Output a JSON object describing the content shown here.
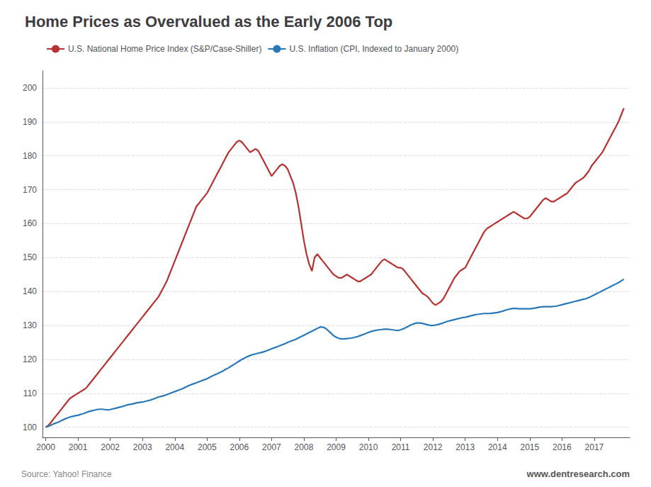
{
  "chart_data": {
    "type": "line",
    "title": "Home Prices as Overvalued as the Early 2006 Top",
    "annotations": [
      "Source: Yahoo! Finance",
      "www.dentresearch.com"
    ],
    "x": [
      2000.0,
      2000.083,
      2000.167,
      2000.25,
      2000.333,
      2000.417,
      2000.5,
      2000.583,
      2000.667,
      2000.75,
      2000.833,
      2000.917,
      2001.0,
      2001.083,
      2001.167,
      2001.25,
      2001.333,
      2001.417,
      2001.5,
      2001.583,
      2001.667,
      2001.75,
      2001.833,
      2001.917,
      2002.0,
      2002.083,
      2002.167,
      2002.25,
      2002.333,
      2002.417,
      2002.5,
      2002.583,
      2002.667,
      2002.75,
      2002.833,
      2002.917,
      2003.0,
      2003.083,
      2003.167,
      2003.25,
      2003.333,
      2003.417,
      2003.5,
      2003.583,
      2003.667,
      2003.75,
      2003.833,
      2003.917,
      2004.0,
      2004.083,
      2004.167,
      2004.25,
      2004.333,
      2004.417,
      2004.5,
      2004.583,
      2004.667,
      2004.75,
      2004.833,
      2004.917,
      2005.0,
      2005.083,
      2005.167,
      2005.25,
      2005.333,
      2005.417,
      2005.5,
      2005.583,
      2005.667,
      2005.75,
      2005.833,
      2005.917,
      2006.0,
      2006.083,
      2006.167,
      2006.25,
      2006.333,
      2006.417,
      2006.5,
      2006.583,
      2006.667,
      2006.75,
      2006.833,
      2006.917,
      2007.0,
      2007.083,
      2007.167,
      2007.25,
      2007.333,
      2007.417,
      2007.5,
      2007.583,
      2007.667,
      2007.75,
      2007.833,
      2007.917,
      2008.0,
      2008.083,
      2008.167,
      2008.25,
      2008.333,
      2008.417,
      2008.5,
      2008.583,
      2008.667,
      2008.75,
      2008.833,
      2008.917,
      2009.0,
      2009.083,
      2009.167,
      2009.25,
      2009.333,
      2009.417,
      2009.5,
      2009.583,
      2009.667,
      2009.75,
      2009.833,
      2009.917,
      2010.0,
      2010.083,
      2010.167,
      2010.25,
      2010.333,
      2010.417,
      2010.5,
      2010.583,
      2010.667,
      2010.75,
      2010.833,
      2010.917,
      2011.0,
      2011.083,
      2011.167,
      2011.25,
      2011.333,
      2011.417,
      2011.5,
      2011.583,
      2011.667,
      2011.75,
      2011.833,
      2011.917,
      2012.0,
      2012.083,
      2012.167,
      2012.25,
      2012.333,
      2012.417,
      2012.5,
      2012.583,
      2012.667,
      2012.75,
      2012.833,
      2012.917,
      2013.0,
      2013.083,
      2013.167,
      2013.25,
      2013.333,
      2013.417,
      2013.5,
      2013.583,
      2013.667,
      2013.75,
      2013.833,
      2013.917,
      2014.0,
      2014.083,
      2014.167,
      2014.25,
      2014.333,
      2014.417,
      2014.5,
      2014.583,
      2014.667,
      2014.75,
      2014.833,
      2014.917,
      2015.0,
      2015.083,
      2015.167,
      2015.25,
      2015.333,
      2015.417,
      2015.5,
      2015.583,
      2015.667,
      2015.75,
      2015.833,
      2015.917,
      2016.0,
      2016.083,
      2016.167,
      2016.25,
      2016.333,
      2016.417,
      2016.5,
      2016.583,
      2016.667,
      2016.75,
      2016.833,
      2016.917,
      2017.0,
      2017.083,
      2017.167,
      2017.25,
      2017.333,
      2017.417,
      2017.5,
      2017.583,
      2017.667,
      2017.75,
      2017.833,
      2017.917
    ],
    "series": [
      {
        "name": "U.S. National Home Price Index (S&P/Case-Shiller)",
        "color": "#b83030",
        "values": [
          100,
          100.5,
          101.5,
          102.5,
          103.5,
          104.5,
          105.5,
          106.5,
          107.5,
          108.5,
          109,
          109.5,
          110,
          110.5,
          111,
          111.5,
          112.5,
          113.5,
          114.5,
          115.5,
          116.5,
          117.5,
          118.5,
          119.5,
          120.5,
          121.5,
          122.5,
          123.5,
          124.5,
          125.5,
          126.5,
          127.5,
          128.5,
          129.5,
          130.5,
          131.5,
          132.5,
          133.5,
          134.5,
          135.5,
          136.5,
          137.5,
          138.5,
          140,
          141.5,
          143,
          145,
          147,
          149,
          151,
          153,
          155,
          157,
          159,
          161,
          163,
          165,
          166,
          167,
          168,
          169,
          170.5,
          172,
          173.5,
          175,
          176.5,
          178,
          179.5,
          181,
          182,
          183,
          184,
          184.5,
          184,
          183,
          182,
          181,
          181.5,
          182,
          181.5,
          180,
          178.5,
          177,
          175.5,
          174,
          175,
          176,
          177,
          177.5,
          177,
          176,
          174,
          172,
          169,
          165,
          160,
          155,
          151,
          148,
          146,
          150,
          151,
          150,
          149,
          148,
          147,
          146,
          145,
          144.5,
          144,
          144,
          144.5,
          145,
          144.5,
          144,
          143.5,
          143,
          143,
          143.5,
          144,
          144.5,
          145,
          146,
          147,
          148,
          149,
          149.5,
          149,
          148.5,
          148,
          147.5,
          147,
          147,
          146.5,
          145.5,
          144.5,
          143.5,
          142.5,
          141.5,
          140.5,
          139.5,
          139,
          138.5,
          137.5,
          136.5,
          136,
          136.5,
          137,
          138,
          139.5,
          141,
          142.5,
          144,
          145,
          146,
          146.5,
          147,
          148.5,
          150,
          151.5,
          153,
          154.5,
          156,
          157.5,
          158.5,
          159,
          159.5,
          160,
          160.5,
          161,
          161.5,
          162,
          162.5,
          163,
          163.5,
          163,
          162.5,
          162,
          161.5,
          161.5,
          162,
          163,
          164,
          165,
          166,
          167,
          167.5,
          167,
          166.5,
          166.5,
          167,
          167.5,
          168,
          168.5,
          169,
          170,
          171,
          172,
          172.5,
          173,
          173.5,
          174.5,
          175.5,
          177,
          178,
          179,
          180,
          181,
          182.5,
          184,
          185.5,
          187,
          188.5,
          190,
          192,
          194
        ]
      },
      {
        "name": "U.S. Inflation (CPI, Indexed to January 2000)",
        "color": "#2878b8",
        "values": [
          100,
          100.3,
          100.6,
          101.0,
          101.3,
          101.6,
          102.0,
          102.4,
          102.7,
          103.0,
          103.2,
          103.4,
          103.5,
          103.8,
          104.0,
          104.3,
          104.6,
          104.8,
          105.0,
          105.2,
          105.3,
          105.3,
          105.2,
          105.1,
          105.2,
          105.4,
          105.6,
          105.8,
          106.0,
          106.2,
          106.5,
          106.7,
          106.8,
          107.0,
          107.2,
          107.3,
          107.4,
          107.6,
          107.8,
          108.0,
          108.3,
          108.6,
          108.9,
          109.1,
          109.3,
          109.6,
          109.9,
          110.2,
          110.5,
          110.8,
          111.1,
          111.4,
          111.8,
          112.2,
          112.5,
          112.8,
          113.1,
          113.4,
          113.7,
          114.0,
          114.3,
          114.7,
          115.1,
          115.5,
          115.8,
          116.2,
          116.6,
          117.1,
          117.5,
          118.0,
          118.5,
          119.0,
          119.5,
          120.0,
          120.4,
          120.8,
          121.1,
          121.4,
          121.6,
          121.8,
          122.0,
          122.2,
          122.5,
          122.8,
          123.1,
          123.4,
          123.7,
          124.0,
          124.3,
          124.6,
          125.0,
          125.3,
          125.6,
          125.9,
          126.3,
          126.7,
          127.1,
          127.5,
          127.9,
          128.3,
          128.7,
          129.1,
          129.5,
          129.5,
          129.2,
          128.5,
          127.8,
          127.0,
          126.5,
          126.2,
          126.0,
          126.0,
          126.1,
          126.2,
          126.3,
          126.5,
          126.7,
          127.0,
          127.3,
          127.6,
          127.9,
          128.2,
          128.4,
          128.6,
          128.7,
          128.8,
          128.9,
          128.9,
          128.8,
          128.7,
          128.6,
          128.5,
          128.7,
          129.0,
          129.4,
          129.8,
          130.2,
          130.5,
          130.7,
          130.7,
          130.6,
          130.4,
          130.2,
          130.0,
          130.0,
          130.1,
          130.3,
          130.5,
          130.8,
          131.1,
          131.3,
          131.5,
          131.7,
          131.9,
          132.1,
          132.3,
          132.4,
          132.6,
          132.8,
          133.0,
          133.2,
          133.3,
          133.4,
          133.5,
          133.5,
          133.5,
          133.6,
          133.7,
          133.8,
          134.0,
          134.2,
          134.5,
          134.7,
          134.9,
          135.0,
          135.0,
          134.9,
          134.9,
          134.9,
          134.9,
          134.9,
          135.0,
          135.1,
          135.3,
          135.4,
          135.5,
          135.5,
          135.5,
          135.5,
          135.6,
          135.7,
          135.9,
          136.1,
          136.3,
          136.5,
          136.7,
          136.9,
          137.1,
          137.3,
          137.5,
          137.7,
          137.9,
          138.2,
          138.6,
          139.0,
          139.4,
          139.8,
          140.2,
          140.6,
          141.0,
          141.4,
          141.8,
          142.2,
          142.6,
          143.1,
          143.6
        ]
      }
    ],
    "xlim": [
      1999.9,
      2018.1
    ],
    "xticks": [
      2000,
      2001,
      2002,
      2003,
      2004,
      2005,
      2006,
      2007,
      2008,
      2009,
      2010,
      2011,
      2012,
      2013,
      2014,
      2015,
      2016,
      2017
    ],
    "ylim": [
      97,
      205
    ],
    "yticks": [
      100,
      110,
      120,
      130,
      140,
      150,
      160,
      170,
      180,
      190,
      200
    ],
    "grid": true
  }
}
